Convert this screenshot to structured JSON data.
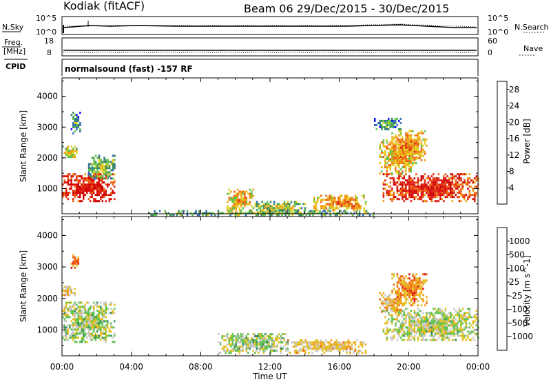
{
  "header": {
    "station": "Kodiak (fitACF)",
    "beam_date": "Beam 06  29/Dec/2015 - 30/Dec/2015"
  },
  "noise_panel": {
    "left_label": "N.Sky",
    "left_ticks": [
      "10^5",
      "10^0"
    ],
    "right_label": "N.Search",
    "right_ticks": [
      "10^5",
      "10^0"
    ]
  },
  "freq_panel": {
    "left_label_1": "Freq.",
    "left_label_2": "[MHz]",
    "left_ticks": [
      "18",
      "8"
    ],
    "right_label": "Nave",
    "right_ticks": [
      "60",
      "0"
    ]
  },
  "cpid_panel": {
    "label": "CPID",
    "text": "normalsound (fast) -157 RF"
  },
  "chart_data": [
    {
      "type": "heatmap",
      "quantity": "Power",
      "ylabel": "Slant Range [km]",
      "xlabel": "Time UT",
      "x_ticks": [
        "00:00",
        "04:00",
        "08:00",
        "12:00",
        "16:00",
        "20:00",
        "00:00"
      ],
      "xlim_hours": [
        0,
        24
      ],
      "y_ticks": [
        "1000",
        "2000",
        "3000",
        "4000"
      ],
      "ylim": [
        180,
        4600
      ],
      "colorbar_label": "Power [dB]",
      "colorbar_ticks": [
        "4",
        "8",
        "12",
        "16",
        "20",
        "24",
        "28"
      ],
      "colorbar_range": [
        0,
        30
      ],
      "colorbar_colors": [
        "#1010ff",
        "#2f6bb0",
        "#3a8a5a",
        "#5fc24a",
        "#e0d020",
        "#f0a010",
        "#ee6010",
        "#e02010",
        "#d00000"
      ],
      "regions": [
        {
          "t0": 0.0,
          "t1": 3.0,
          "r0": 600,
          "r1": 1500,
          "level": 0.8
        },
        {
          "t0": 0.0,
          "t1": 0.8,
          "r0": 2000,
          "r1": 2400,
          "level": 0.45
        },
        {
          "t0": 1.5,
          "t1": 3.0,
          "r0": 1300,
          "r1": 2100,
          "level": 0.3
        },
        {
          "t0": 0.5,
          "t1": 1.0,
          "r0": 2800,
          "r1": 3500,
          "level": 0.2
        },
        {
          "t0": 9.5,
          "t1": 11.0,
          "r0": 300,
          "r1": 1000,
          "level": 0.5
        },
        {
          "t0": 11.0,
          "t1": 14.0,
          "r0": 200,
          "r1": 600,
          "level": 0.35
        },
        {
          "t0": 14.5,
          "t1": 17.5,
          "r0": 300,
          "r1": 800,
          "level": 0.55
        },
        {
          "t0": 18.5,
          "t1": 24.0,
          "r0": 600,
          "r1": 1500,
          "level": 0.75
        },
        {
          "t0": 18.3,
          "t1": 20.5,
          "r0": 1500,
          "r1": 2600,
          "level": 0.5
        },
        {
          "t0": 19.0,
          "t1": 21.0,
          "r0": 1900,
          "r1": 2900,
          "level": 0.55
        },
        {
          "t0": 18.0,
          "t1": 19.5,
          "r0": 2900,
          "r1": 3300,
          "level": 0.2
        },
        {
          "t0": 5.0,
          "t1": 18.0,
          "r0": 150,
          "r1": 300,
          "level": 0.3
        }
      ]
    },
    {
      "type": "heatmap",
      "quantity": "Velocity",
      "ylabel": "Slant Range [km]",
      "xlabel": "Time UT",
      "x_ticks": [
        "00:00",
        "04:00",
        "08:00",
        "12:00",
        "16:00",
        "20:00",
        "00:00"
      ],
      "xlim_hours": [
        0,
        24
      ],
      "y_ticks": [
        "1000",
        "2000",
        "3000",
        "4000"
      ],
      "ylim": [
        180,
        4600
      ],
      "colorbar_label": "Velocity [m s^-1]",
      "colorbar_ticks": [
        "1000",
        "500",
        "100",
        "25",
        "-25",
        "-100",
        "-500",
        "-1000"
      ],
      "colorbar_range": [
        -1000,
        1000
      ],
      "colorbar_colors": [
        "#2040c0",
        "#2f6bb0",
        "#3a8a5a",
        "#5fc24a",
        "#c8c8c8",
        "#e0c020",
        "#f0a010",
        "#ee6010",
        "#e01010"
      ],
      "regions": [
        {
          "t0": 0.0,
          "t1": 3.0,
          "r0": 600,
          "r1": 1900,
          "level": 0.48
        },
        {
          "t0": 0.0,
          "t1": 0.8,
          "r0": 2100,
          "r1": 2400,
          "level": 0.62
        },
        {
          "t0": 0.5,
          "t1": 1.0,
          "r0": 3000,
          "r1": 3400,
          "level": 0.75
        },
        {
          "t0": 9.0,
          "t1": 13.0,
          "r0": 300,
          "r1": 900,
          "level": 0.48
        },
        {
          "t0": 13.0,
          "t1": 17.5,
          "r0": 300,
          "r1": 700,
          "level": 0.62
        },
        {
          "t0": 18.5,
          "t1": 24.0,
          "r0": 700,
          "r1": 1700,
          "level": 0.5
        },
        {
          "t0": 19.0,
          "t1": 21.0,
          "r0": 1800,
          "r1": 2800,
          "level": 0.75
        },
        {
          "t0": 18.3,
          "t1": 19.5,
          "r0": 1600,
          "r1": 2200,
          "level": 0.65
        }
      ]
    }
  ]
}
